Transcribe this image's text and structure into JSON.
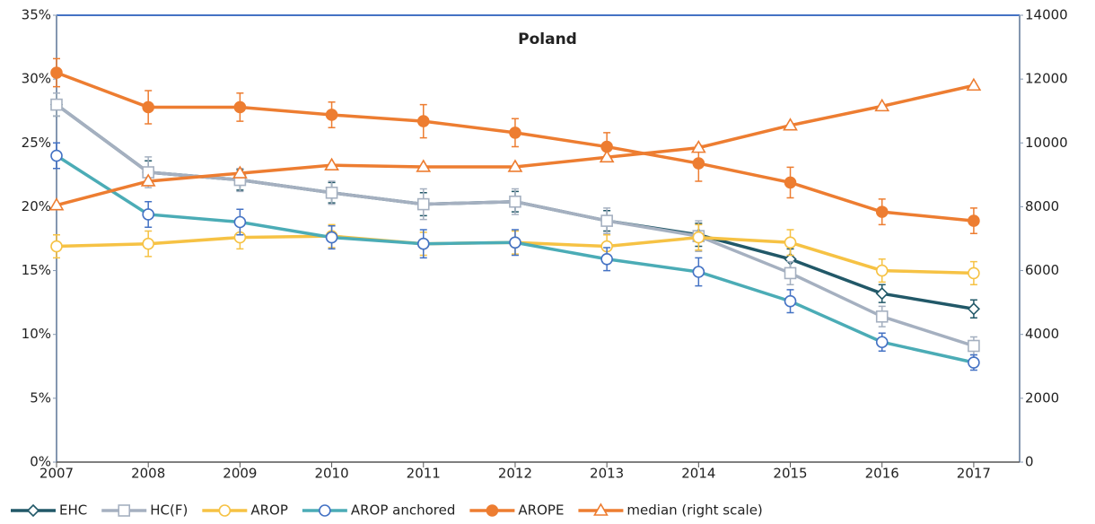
{
  "chart_data": {
    "type": "line",
    "title": "Poland",
    "x": [
      2007,
      2008,
      2009,
      2010,
      2011,
      2012,
      2013,
      2014,
      2015,
      2016,
      2017
    ],
    "xlim": [
      2007,
      2017.5
    ],
    "xticks": [
      2007,
      2008,
      2009,
      2010,
      2011,
      2012,
      2013,
      2014,
      2015,
      2016,
      2017
    ],
    "ylim": [
      0,
      35
    ],
    "yticks": [
      {
        "value": 0,
        "label": "0%"
      },
      {
        "value": 5,
        "label": "5%"
      },
      {
        "value": 10,
        "label": "10%"
      },
      {
        "value": 15,
        "label": "15%"
      },
      {
        "value": 20,
        "label": "20%"
      },
      {
        "value": 25,
        "label": "25%"
      },
      {
        "value": 30,
        "label": "30%"
      },
      {
        "value": 35,
        "label": "35%"
      }
    ],
    "y2lim": [
      0,
      14000
    ],
    "y2ticks": [
      0,
      2000,
      4000,
      6000,
      8000,
      10000,
      12000,
      14000
    ],
    "grid": false,
    "legend": "bottom",
    "series": [
      {
        "name": "EHC",
        "color": "#215868",
        "marker": "diamond",
        "values": [
          28.0,
          22.7,
          22.1,
          21.1,
          20.2,
          20.4,
          18.9,
          17.8,
          15.9,
          13.2,
          12.0
        ],
        "errors": [
          0.9,
          0.9,
          0.8,
          0.8,
          0.9,
          0.8,
          0.8,
          0.9,
          0.8,
          0.7,
          0.7
        ]
      },
      {
        "name": "HC(F)",
        "color": "#a5b0c0",
        "marker": "square",
        "values": [
          28.0,
          22.7,
          22.1,
          21.1,
          20.2,
          20.4,
          18.9,
          17.7,
          14.8,
          11.4,
          9.1
        ],
        "errors": [
          0.9,
          1.2,
          0.9,
          0.9,
          1.2,
          1.0,
          1.0,
          1.2,
          0.9,
          0.8,
          0.7
        ]
      },
      {
        "name": "AROP",
        "color": "#f6c244",
        "marker": "circle-open",
        "values": [
          16.9,
          17.1,
          17.6,
          17.7,
          17.1,
          17.2,
          16.9,
          17.6,
          17.2,
          15.0,
          14.8
        ],
        "errors": [
          0.9,
          1.0,
          0.9,
          0.9,
          0.9,
          0.9,
          0.9,
          1.0,
          1.0,
          0.9,
          0.9
        ]
      },
      {
        "name": "AROP anchored",
        "color": "#4bacb6",
        "marker": "circle-blue",
        "values": [
          24.0,
          19.4,
          18.8,
          17.6,
          17.1,
          17.2,
          15.9,
          14.9,
          12.6,
          9.4,
          7.8
        ],
        "errors": [
          1.0,
          1.0,
          1.0,
          0.9,
          1.1,
          1.0,
          0.9,
          1.1,
          0.9,
          0.7,
          0.6
        ]
      },
      {
        "name": "AROPE",
        "color": "#ed7d31",
        "marker": "circle-filled",
        "values": [
          30.5,
          27.8,
          27.8,
          27.2,
          26.7,
          25.8,
          24.7,
          23.4,
          21.9,
          19.6,
          18.9
        ],
        "errors": [
          1.1,
          1.3,
          1.1,
          1.0,
          1.3,
          1.1,
          1.1,
          1.4,
          1.2,
          1.0,
          1.0
        ]
      },
      {
        "name": "median (right scale)",
        "color": "#ed7d31",
        "marker": "triangle",
        "axis": "y2",
        "values": [
          8050,
          8800,
          9050,
          9300,
          9250,
          9250,
          9550,
          9850,
          10550,
          11150,
          11800
        ]
      }
    ]
  }
}
